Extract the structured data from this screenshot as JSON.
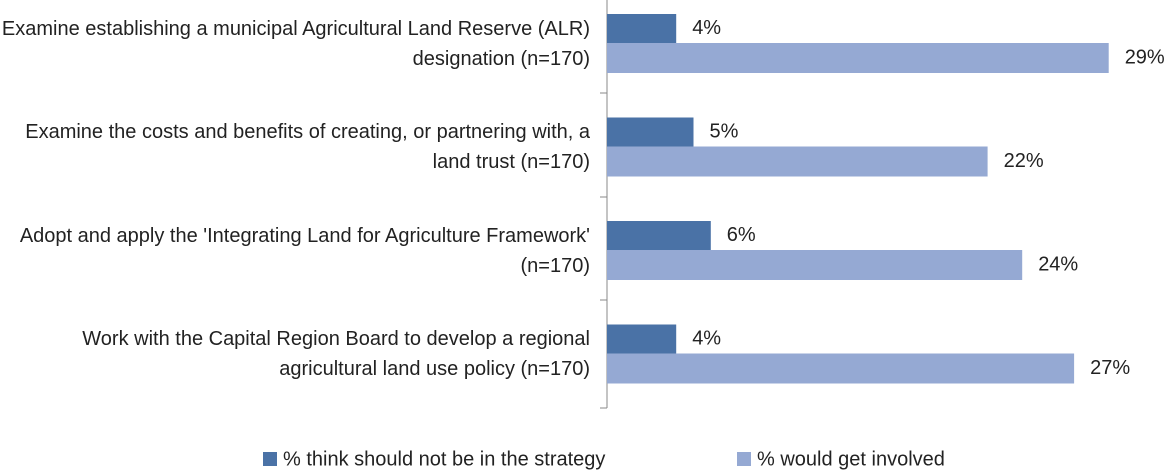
{
  "chart_data": {
    "type": "bar",
    "orientation": "horizontal",
    "categories": [
      "Examine establishing a municipal Agricultural Land Reserve (ALR) designation (n=170)",
      "Examine the costs and benefits of creating, or partnering with, a land trust (n=170)",
      "Adopt and apply the 'Integrating Land for Agriculture Framework' (n=170)",
      "Work with the Capital Region Board to develop a regional agricultural land use policy (n=170)"
    ],
    "series": [
      {
        "name": "% think should not be in the strategy",
        "color": "#4a72a6",
        "values": [
          4,
          5,
          6,
          4
        ],
        "value_labels": [
          "4%",
          "5%",
          "6%",
          "4%"
        ]
      },
      {
        "name": "% would get involved",
        "color": "#95a9d3",
        "values": [
          29,
          22,
          24,
          27
        ],
        "value_labels": [
          "29%",
          "22%",
          "24%",
          "27%"
        ]
      }
    ],
    "legend": "bottom"
  }
}
